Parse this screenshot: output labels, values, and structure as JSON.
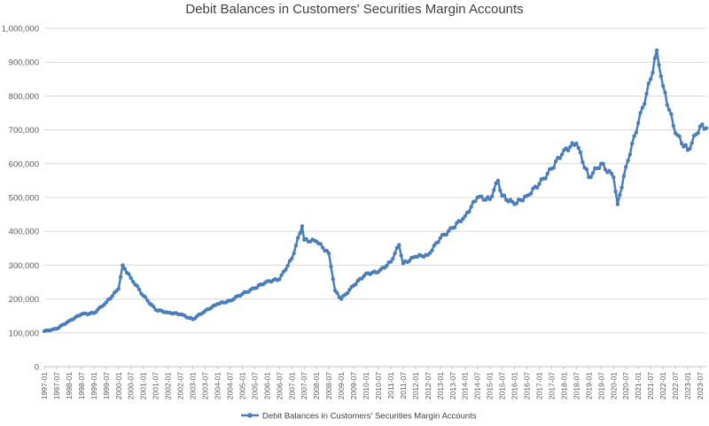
{
  "chart_data": {
    "type": "line",
    "title": "Debit Balances in Customers' Securities Margin Accounts",
    "xlabel": "",
    "ylabel": "",
    "ylim": [
      0,
      1000000
    ],
    "y_ticks": [
      "0",
      "100,000",
      "200,000",
      "300,000",
      "400,000",
      "500,000",
      "600,000",
      "700,000",
      "800,000",
      "900,000",
      "1,000,000"
    ],
    "x_ticks": [
      "1997-01",
      "1997-07",
      "1998-01",
      "1998-07",
      "1999-01",
      "1999-07",
      "2000-01",
      "2000-07",
      "2001-01",
      "2001-07",
      "2002-01",
      "2002-07",
      "2003-01",
      "2003-07",
      "2004-01",
      "2004-07",
      "2005-01",
      "2005-07",
      "2006-01",
      "2006-07",
      "2007-01",
      "2007-07",
      "2008-01",
      "2008-07",
      "2009-01",
      "2009-07",
      "2010-01",
      "2010-07",
      "2011-01",
      "2011-07",
      "2012-01",
      "2012-07",
      "2013-01",
      "2013-07",
      "2014-01",
      "2014-07",
      "2015-01",
      "2015-07",
      "2016-01",
      "2016-07",
      "2017-01",
      "2017-07",
      "2018-01",
      "2018-07",
      "2019-01",
      "2019-07",
      "2020-01",
      "2020-07",
      "2021-01",
      "2021-07",
      "2022-01",
      "2022-07",
      "2023-01",
      "2023-07"
    ],
    "grid": true,
    "legend_position": "bottom",
    "color": "#4a7ebb",
    "series": [
      {
        "name": "Debit Balances in Customers' Securities Margin Accounts",
        "x": [
          "1997-01",
          "1997-07",
          "1998-01",
          "1998-07",
          "1999-01",
          "1999-07",
          "2000-01",
          "2000-03",
          "2000-07",
          "2001-01",
          "2001-07",
          "2002-01",
          "2002-07",
          "2003-01",
          "2003-07",
          "2004-01",
          "2004-07",
          "2005-01",
          "2005-07",
          "2006-01",
          "2006-07",
          "2007-01",
          "2007-06",
          "2007-07",
          "2008-01",
          "2008-07",
          "2008-10",
          "2009-01",
          "2009-07",
          "2010-01",
          "2010-07",
          "2011-01",
          "2011-05",
          "2011-07",
          "2012-01",
          "2012-07",
          "2013-01",
          "2013-07",
          "2014-01",
          "2014-07",
          "2015-01",
          "2015-05",
          "2015-07",
          "2016-01",
          "2016-07",
          "2017-01",
          "2017-07",
          "2018-01",
          "2018-07",
          "2019-01",
          "2019-07",
          "2020-01",
          "2020-03",
          "2020-07",
          "2021-01",
          "2021-07",
          "2021-10",
          "2022-01",
          "2022-07",
          "2023-01",
          "2023-07",
          "2023-10"
        ],
        "values": [
          105000,
          112000,
          135000,
          155000,
          158000,
          190000,
          230000,
          300000,
          262000,
          210000,
          168000,
          160000,
          155000,
          140000,
          165000,
          185000,
          195000,
          215000,
          232000,
          252000,
          258000,
          320000,
          415000,
          375000,
          370000,
          335000,
          225000,
          200000,
          240000,
          275000,
          280000,
          310000,
          360000,
          305000,
          325000,
          330000,
          380000,
          410000,
          445000,
          500000,
          495000,
          550000,
          505000,
          480000,
          505000,
          540000,
          585000,
          640000,
          660000,
          560000,
          600000,
          560000,
          480000,
          590000,
          720000,
          850000,
          935000,
          830000,
          690000,
          640000,
          710000,
          705000
        ]
      }
    ]
  }
}
